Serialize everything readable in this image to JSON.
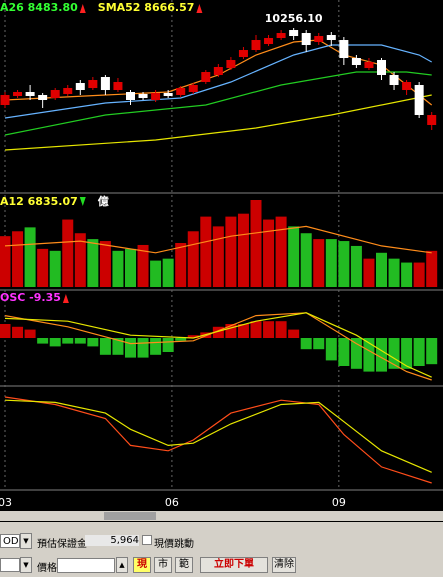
{
  "chart_data": [
    {
      "type": "candlestick",
      "legend": [
        {
          "text": "A26 8483.80",
          "color": "#33ff33"
        },
        {
          "text": "SMA52 8666.57",
          "color": "#ffff33"
        }
      ],
      "annotation": "10256.10",
      "up_color": "#e00000",
      "down_color": "#ffffff",
      "candles": {
        "open": [
          9486,
          9576,
          9616,
          9586,
          9556,
          9596,
          9706,
          9656,
          9766,
          9636,
          9616,
          9596,
          9536,
          9606,
          9586,
          9616,
          9716,
          9786,
          9856,
          9966,
          10036,
          10096,
          10156,
          10236,
          10206,
          10116,
          10186,
          10136,
          9956,
          9856,
          9936,
          9786,
          9636,
          9686,
          9286
        ],
        "high": [
          9616,
          9636,
          9686,
          9606,
          9656,
          9686,
          9736,
          9766,
          9786,
          9756,
          9636,
          9616,
          9636,
          9636,
          9676,
          9706,
          9836,
          9896,
          9966,
          10066,
          10186,
          10186,
          10236,
          10256.1,
          10236,
          10206,
          10216,
          10166,
          9986,
          9956,
          9956,
          9816,
          9736,
          9716,
          9416
        ],
        "low": [
          9456,
          9556,
          9536,
          9456,
          9536,
          9576,
          9586,
          9636,
          9586,
          9616,
          9486,
          9536,
          9516,
          9556,
          9566,
          9596,
          9696,
          9766,
          9836,
          9946,
          10016,
          10076,
          10136,
          10136,
          10016,
          10086,
          10076,
          9886,
          9856,
          9836,
          9736,
          9636,
          9586,
          9356,
          9236
        ],
        "close": [
          9586,
          9616,
          9576,
          9536,
          9636,
          9656,
          9636,
          9736,
          9636,
          9716,
          9536,
          9556,
          9606,
          9576,
          9656,
          9686,
          9816,
          9866,
          9936,
          10036,
          10136,
          10156,
          10206,
          10176,
          10086,
          10176,
          10136,
          9956,
          9886,
          9916,
          9786,
          9686,
          9716,
          9386,
          9386
        ]
      },
      "lines": [
        {
          "color": "#ff8c1a",
          "x": [
            0,
            8,
            13,
            17,
            20,
            23,
            25,
            27,
            30,
            32,
            34
          ],
          "values": [
            9536,
            9586,
            9616,
            9786,
            9986,
            10116,
            10136,
            9986,
            9886,
            9686,
            9486
          ]
        },
        {
          "color": "#66b3ff",
          "x": [
            0,
            8,
            14,
            18,
            23,
            26,
            30,
            33,
            34
          ],
          "values": [
            9356,
            9506,
            9556,
            9716,
            9986,
            10086,
            10086,
            9986,
            9916
          ]
        },
        {
          "color": "#22cc22",
          "x": [
            0,
            8,
            16,
            22,
            28,
            32,
            34
          ],
          "values": [
            9186,
            9386,
            9486,
            9686,
            9816,
            9816,
            9786
          ]
        },
        {
          "color": "#e6e600",
          "x": [
            0,
            12,
            20,
            26,
            32,
            34
          ],
          "values": [
            9036,
            9136,
            9256,
            9386,
            9536,
            9586
          ]
        }
      ]
    },
    {
      "type": "bar",
      "legend": [
        {
          "text": "A12 6835.07",
          "color": "#ffff33"
        },
        {
          "text": "億",
          "color": "#ffffff"
        }
      ],
      "values": [
        7540,
        8265,
        8845,
        5655,
        5365,
        10005,
        7975,
        7105,
        6815,
        5365,
        5655,
        6235,
        3915,
        4205,
        6525,
        8265,
        10440,
        8990,
        10440,
        10875,
        12905,
        10005,
        10440,
        8990,
        7975,
        7105,
        7105,
        6815,
        6090,
        4205,
        5075,
        4205,
        3625,
        3625,
        5365
      ],
      "colors": [
        "#cc0000",
        "#cc0000",
        "#22bb22",
        "#cc0000",
        "#22bb22",
        "#cc0000",
        "#cc0000",
        "#22bb22",
        "#cc0000",
        "#22bb22",
        "#22bb22",
        "#cc0000",
        "#22bb22",
        "#22bb22",
        "#cc0000",
        "#cc0000",
        "#cc0000",
        "#cc0000",
        "#cc0000",
        "#cc0000",
        "#cc0000",
        "#cc0000",
        "#cc0000",
        "#22bb22",
        "#22bb22",
        "#cc0000",
        "#22bb22",
        "#22bb22",
        "#22bb22",
        "#cc0000",
        "#22bb22",
        "#22bb22",
        "#22bb22",
        "#cc0000",
        "#cc0000"
      ],
      "lines": [
        {
          "color": "#ff8c1a",
          "x": [
            0,
            6,
            12,
            18,
            24,
            30,
            34
          ],
          "values": [
            6090,
            6815,
            5075,
            7540,
            8990,
            6090,
            5075
          ]
        }
      ]
    },
    {
      "type": "osc",
      "legend": [
        {
          "text": "OSC -9.35",
          "color": "#ff33ff"
        }
      ],
      "values": [
        5,
        4,
        3,
        -2,
        -3,
        -2,
        -2,
        -3,
        -6,
        -6,
        -7,
        -7,
        -6,
        -5,
        -1,
        1,
        2,
        4,
        5,
        5,
        6,
        6,
        6,
        3,
        -4,
        -4,
        -8,
        -10,
        -11,
        -12,
        -12,
        -11,
        -11,
        -10,
        -9.35
      ],
      "up_color": "#cc0000",
      "down_color": "#22bb22",
      "lines": [
        {
          "color": "#ff8c1a",
          "x": [
            0,
            5,
            10,
            15,
            20,
            24,
            28,
            32,
            34
          ],
          "values": [
            8,
            4,
            -2,
            -1,
            8,
            9,
            -2,
            -12,
            -15
          ]
        },
        {
          "color": "#e6e600",
          "x": [
            0,
            5,
            10,
            15,
            20,
            24,
            28,
            32,
            34
          ],
          "values": [
            7,
            6,
            1,
            0,
            6,
            9,
            1,
            -10,
            -14
          ]
        }
      ]
    },
    {
      "type": "line",
      "lines": [
        {
          "color": "#ff4d1a",
          "x": [
            0,
            4,
            8,
            10,
            13,
            15,
            18,
            22,
            25,
            27,
            30,
            34
          ],
          "values": [
            95,
            88,
            75,
            50,
            45,
            55,
            80,
            92,
            88,
            60,
            30,
            15
          ]
        },
        {
          "color": "#e6e600",
          "x": [
            0,
            4,
            8,
            10,
            13,
            15,
            18,
            22,
            25,
            27,
            30,
            34
          ],
          "values": [
            92,
            90,
            80,
            65,
            50,
            52,
            70,
            88,
            90,
            72,
            45,
            25
          ]
        }
      ]
    }
  ],
  "xticks": [
    {
      "value": 0,
      "label": "03"
    },
    {
      "value": 13.3,
      "label": "06"
    },
    {
      "value": 26.6,
      "label": "09"
    }
  ],
  "toolbar": {
    "order_type": "OD",
    "margin_label": "預估保證金",
    "margin_value": "5,964",
    "tick_label": "現價跳動",
    "price_label": "價格",
    "btn_now": "現",
    "btn_market": "市",
    "btn_range": "範",
    "btn_submit": "立即下單",
    "btn_clear": "清除"
  }
}
